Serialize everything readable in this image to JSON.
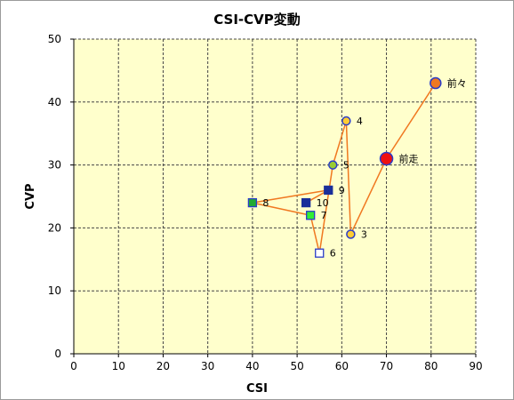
{
  "chart_data": {
    "type": "scatter",
    "title": "CSI-CVP変動",
    "xlabel": "CSI",
    "ylabel": "CVP",
    "xlim": [
      0,
      90
    ],
    "ylim": [
      0,
      50
    ],
    "xticks": [
      0,
      10,
      20,
      30,
      40,
      50,
      60,
      70,
      80,
      90
    ],
    "yticks": [
      0,
      10,
      20,
      30,
      40,
      50
    ],
    "grid": true,
    "plot_background": "#ffffcc",
    "line_color": "#f07820",
    "series": [
      {
        "connected": true,
        "points": [
          {
            "label": "前々",
            "x": 81,
            "y": 43,
            "marker": "circle",
            "fill": "#f07820",
            "stroke": "#2a3cc8",
            "size": "large"
          },
          {
            "label": "前走",
            "x": 70,
            "y": 31,
            "marker": "circle",
            "fill": "#ee1111",
            "stroke": "#2a3cc8",
            "size": "xlarge"
          },
          {
            "label": "3",
            "x": 62,
            "y": 19,
            "marker": "circle",
            "fill": "#ffcc33",
            "stroke": "#2a3cc8",
            "size": "small"
          },
          {
            "label": "4",
            "x": 61,
            "y": 37,
            "marker": "circle",
            "fill": "#ffcc33",
            "stroke": "#2a3cc8",
            "size": "small"
          },
          {
            "label": "5",
            "x": 58,
            "y": 30,
            "marker": "circle",
            "fill": "#99cc33",
            "stroke": "#2a3cc8",
            "size": "small"
          },
          {
            "label": "6",
            "x": 55,
            "y": 16,
            "marker": "square",
            "fill": "#ffffff",
            "stroke": "#2a3cc8",
            "size": "small"
          },
          {
            "label": "7",
            "x": 53,
            "y": 22,
            "marker": "square",
            "fill": "#33ee33",
            "stroke": "#2a3cc8",
            "size": "small"
          },
          {
            "label": "8",
            "x": 40,
            "y": 24,
            "marker": "square",
            "fill": "#22aa33",
            "stroke": "#2a3cc8",
            "size": "small"
          },
          {
            "label": "9",
            "x": 57,
            "y": 26,
            "marker": "square",
            "fill": "#1a2f9a",
            "stroke": "#1a2f9a",
            "size": "small"
          },
          {
            "label": "10",
            "x": 52,
            "y": 24,
            "marker": "square",
            "fill": "#1a2f9a",
            "stroke": "#1a2f9a",
            "size": "small"
          }
        ]
      }
    ]
  }
}
